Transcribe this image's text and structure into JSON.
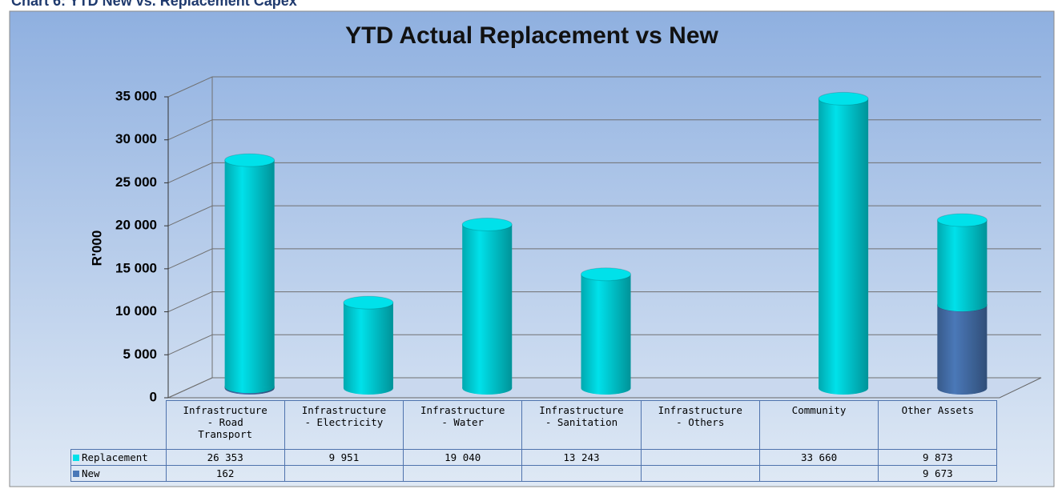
{
  "chart_data": {
    "type": "bar",
    "header": "Chart 6: YTD New vs. Replacement Capex",
    "title": "YTD Actual Replacement vs New",
    "y_label": "R'000",
    "stacked": true,
    "categories": [
      "Infrastructure - Road Transport",
      "Infrastructure - Electricity",
      "Infrastructure - Water",
      "Infrastructure - Sanitation",
      "Infrastructure - Others",
      "Community",
      "Other Assets"
    ],
    "series": [
      {
        "name": "Replacement",
        "color": "#00e1ea",
        "values": [
          26353,
          9951,
          19040,
          13243,
          null,
          33660,
          9873
        ],
        "value_labels": [
          "26 353",
          "9 951",
          "19 040",
          "13 243",
          null,
          "33 660",
          "9 873"
        ]
      },
      {
        "name": "New",
        "color": "#4a78b8",
        "values": [
          162,
          null,
          null,
          null,
          null,
          null,
          9673
        ],
        "value_labels": [
          "162",
          null,
          null,
          null,
          null,
          null,
          "9 673"
        ]
      }
    ],
    "ylim": [
      0,
      35000
    ],
    "yticks": [
      0,
      {
        "value": 5000,
        "label": "5 000"
      },
      {
        "value": 10000,
        "label": "10 000"
      },
      {
        "value": 15000,
        "label": "15 000"
      },
      {
        "value": 20000,
        "label": "20 000"
      },
      {
        "value": 25000,
        "label": "25 000"
      },
      {
        "value": 30000,
        "label": "30 000"
      },
      {
        "value": 35000,
        "label": "35 000"
      }
    ],
    "grid": true
  }
}
